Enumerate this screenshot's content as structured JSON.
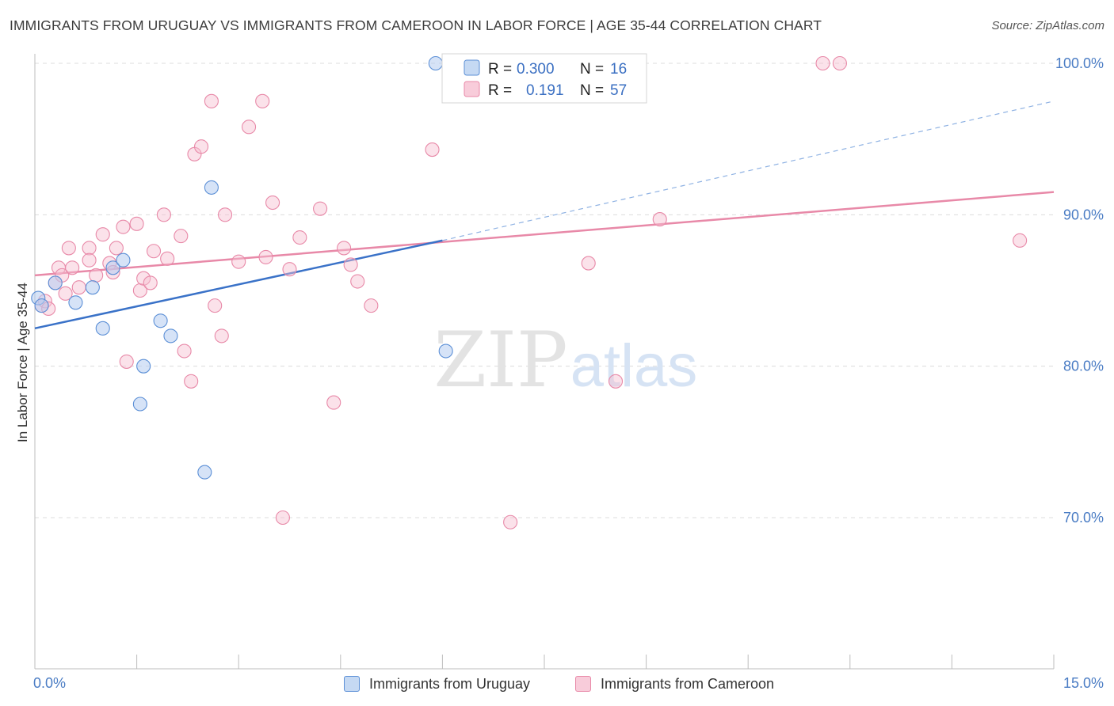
{
  "title": "IMMIGRANTS FROM URUGUAY VS IMMIGRANTS FROM CAMEROON IN LABOR FORCE | AGE 35-44 CORRELATION CHART",
  "source": "Source: ZipAtlas.com",
  "watermark": {
    "zip": "ZIP",
    "atlas": "atlas"
  },
  "colors": {
    "uruguay": "#5b8fd6",
    "cameroon": "#e889a8",
    "axis_text": "#4a7cc4"
  },
  "legend_box": {
    "rows": [
      {
        "r_label": "R = ",
        "r_value": "0.300",
        "n_label": "N = ",
        "n_value": "16"
      },
      {
        "r_label": "R = ",
        "r_value": "0.191",
        "n_label": "N = ",
        "n_value": "57"
      }
    ]
  },
  "chart_data": {
    "type": "scatter",
    "xlabel": "",
    "ylabel": "In Labor Force | Age 35-44",
    "xlim": [
      0,
      15
    ],
    "ylim": [
      60,
      100
    ],
    "x_tick_labels": [
      "0.0%",
      "15.0%"
    ],
    "y_ticks": [
      70,
      80,
      90,
      100
    ],
    "y_tick_labels": [
      "70.0%",
      "80.0%",
      "90.0%",
      "100.0%"
    ],
    "grid": true,
    "legend_position": "bottom",
    "series": [
      {
        "name": "Immigrants from Uruguay",
        "points": [
          [
            0.05,
            84.5
          ],
          [
            0.3,
            85.5
          ],
          [
            0.6,
            84.2
          ],
          [
            0.85,
            85.2
          ],
          [
            1.0,
            82.5
          ],
          [
            1.15,
            86.5
          ],
          [
            1.3,
            87.0
          ],
          [
            1.55,
            77.5
          ],
          [
            1.6,
            80.0
          ],
          [
            1.85,
            83.0
          ],
          [
            2.0,
            82.0
          ],
          [
            2.5,
            73.0
          ],
          [
            2.6,
            91.8
          ],
          [
            5.9,
            100.0
          ],
          [
            6.05,
            81.0
          ],
          [
            0.1,
            84.0
          ]
        ],
        "trend": {
          "x": [
            0,
            6.0
          ],
          "y": [
            82.5,
            88.3
          ]
        },
        "trend_extended": {
          "x": [
            6.0,
            15.0
          ],
          "y": [
            88.3,
            97.5
          ]
        }
      },
      {
        "name": "Immigrants from Cameroon",
        "points": [
          [
            0.1,
            84.0
          ],
          [
            0.3,
            85.5
          ],
          [
            0.35,
            86.5
          ],
          [
            0.4,
            86.0
          ],
          [
            0.5,
            87.8
          ],
          [
            0.55,
            86.5
          ],
          [
            0.65,
            85.2
          ],
          [
            0.8,
            87.8
          ],
          [
            0.8,
            87.0
          ],
          [
            0.9,
            86.0
          ],
          [
            1.0,
            88.7
          ],
          [
            1.1,
            86.8
          ],
          [
            1.2,
            87.8
          ],
          [
            1.3,
            89.2
          ],
          [
            1.35,
            80.3
          ],
          [
            1.5,
            89.4
          ],
          [
            1.55,
            85.0
          ],
          [
            1.6,
            85.8
          ],
          [
            1.7,
            85.5
          ],
          [
            1.75,
            87.6
          ],
          [
            1.9,
            90.0
          ],
          [
            1.95,
            87.1
          ],
          [
            2.15,
            88.6
          ],
          [
            2.2,
            81.0
          ],
          [
            2.3,
            79.0
          ],
          [
            2.35,
            94.0
          ],
          [
            2.45,
            94.5
          ],
          [
            2.6,
            97.5
          ],
          [
            2.65,
            84.0
          ],
          [
            2.75,
            82.0
          ],
          [
            2.8,
            90.0
          ],
          [
            3.0,
            86.9
          ],
          [
            3.15,
            95.8
          ],
          [
            3.35,
            97.5
          ],
          [
            3.4,
            87.2
          ],
          [
            3.5,
            90.8
          ],
          [
            3.65,
            70.0
          ],
          [
            3.75,
            86.4
          ],
          [
            3.9,
            88.5
          ],
          [
            4.2,
            90.4
          ],
          [
            4.4,
            77.6
          ],
          [
            4.55,
            87.8
          ],
          [
            4.65,
            86.7
          ],
          [
            4.75,
            85.6
          ],
          [
            4.95,
            84.0
          ],
          [
            5.85,
            94.3
          ],
          [
            7.0,
            69.7
          ],
          [
            8.15,
            86.8
          ],
          [
            8.55,
            79.0
          ],
          [
            9.2,
            89.7
          ],
          [
            11.6,
            100.0
          ],
          [
            11.85,
            100.0
          ],
          [
            14.5,
            88.3
          ],
          [
            0.15,
            84.3
          ],
          [
            0.2,
            83.8
          ],
          [
            0.45,
            84.8
          ],
          [
            1.15,
            86.2
          ]
        ],
        "trend": {
          "x": [
            0,
            15.0
          ],
          "y": [
            86.0,
            91.5
          ]
        }
      }
    ]
  }
}
